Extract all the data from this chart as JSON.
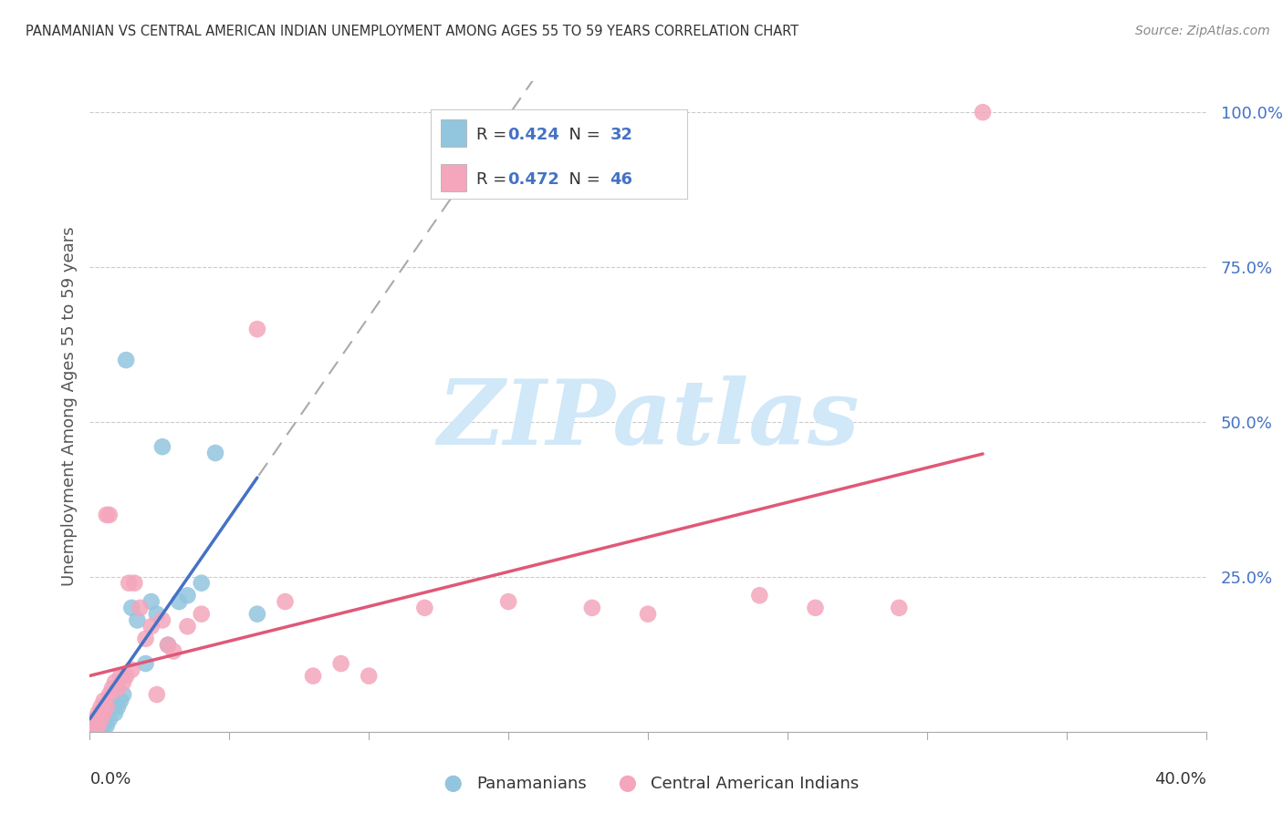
{
  "title": "PANAMANIAN VS CENTRAL AMERICAN INDIAN UNEMPLOYMENT AMONG AGES 55 TO 59 YEARS CORRELATION CHART",
  "source": "Source: ZipAtlas.com",
  "xlabel_bottom_left": "0.0%",
  "xlabel_bottom_right": "40.0%",
  "ylabel": "Unemployment Among Ages 55 to 59 years",
  "xlim": [
    0.0,
    0.4
  ],
  "ylim": [
    0.0,
    1.05
  ],
  "yticks": [
    0.25,
    0.5,
    0.75,
    1.0
  ],
  "ytick_labels": [
    "25.0%",
    "50.0%",
    "75.0%",
    "100.0%"
  ],
  "blue_color": "#92c5de",
  "pink_color": "#f4a6bc",
  "blue_line_color": "#4472c4",
  "pink_line_color": "#e05878",
  "gray_dash_color": "#aaaaaa",
  "watermark_text": "ZIPatlas",
  "watermark_color": "#d0e8f8",
  "pan_r": "0.424",
  "pan_n": "32",
  "cai_r": "0.472",
  "cai_n": "46",
  "panamanian_x": [
    0.0,
    0.001,
    0.002,
    0.002,
    0.003,
    0.003,
    0.004,
    0.004,
    0.005,
    0.005,
    0.006,
    0.006,
    0.007,
    0.007,
    0.008,
    0.009,
    0.01,
    0.011,
    0.012,
    0.013,
    0.015,
    0.017,
    0.02,
    0.022,
    0.024,
    0.026,
    0.028,
    0.032,
    0.035,
    0.04,
    0.045,
    0.06
  ],
  "panamanian_y": [
    0.0,
    0.0,
    0.0,
    0.01,
    0.0,
    0.02,
    0.01,
    0.0,
    0.02,
    0.01,
    0.03,
    0.01,
    0.04,
    0.02,
    0.04,
    0.03,
    0.04,
    0.05,
    0.06,
    0.6,
    0.2,
    0.18,
    0.11,
    0.21,
    0.19,
    0.46,
    0.14,
    0.21,
    0.22,
    0.24,
    0.45,
    0.19
  ],
  "cai_x": [
    0.0,
    0.001,
    0.001,
    0.002,
    0.002,
    0.003,
    0.003,
    0.004,
    0.004,
    0.005,
    0.005,
    0.006,
    0.006,
    0.007,
    0.007,
    0.008,
    0.009,
    0.01,
    0.011,
    0.012,
    0.013,
    0.014,
    0.015,
    0.016,
    0.018,
    0.02,
    0.022,
    0.024,
    0.026,
    0.028,
    0.03,
    0.035,
    0.04,
    0.06,
    0.07,
    0.08,
    0.09,
    0.1,
    0.12,
    0.15,
    0.18,
    0.2,
    0.24,
    0.26,
    0.29,
    0.32
  ],
  "cai_y": [
    0.0,
    0.0,
    0.01,
    0.0,
    0.02,
    0.01,
    0.03,
    0.02,
    0.04,
    0.03,
    0.05,
    0.04,
    0.35,
    0.06,
    0.35,
    0.07,
    0.08,
    0.07,
    0.09,
    0.08,
    0.09,
    0.24,
    0.1,
    0.24,
    0.2,
    0.15,
    0.17,
    0.06,
    0.18,
    0.14,
    0.13,
    0.17,
    0.19,
    0.65,
    0.21,
    0.09,
    0.11,
    0.09,
    0.2,
    0.21,
    0.2,
    0.19,
    0.22,
    0.2,
    0.2,
    1.0
  ]
}
